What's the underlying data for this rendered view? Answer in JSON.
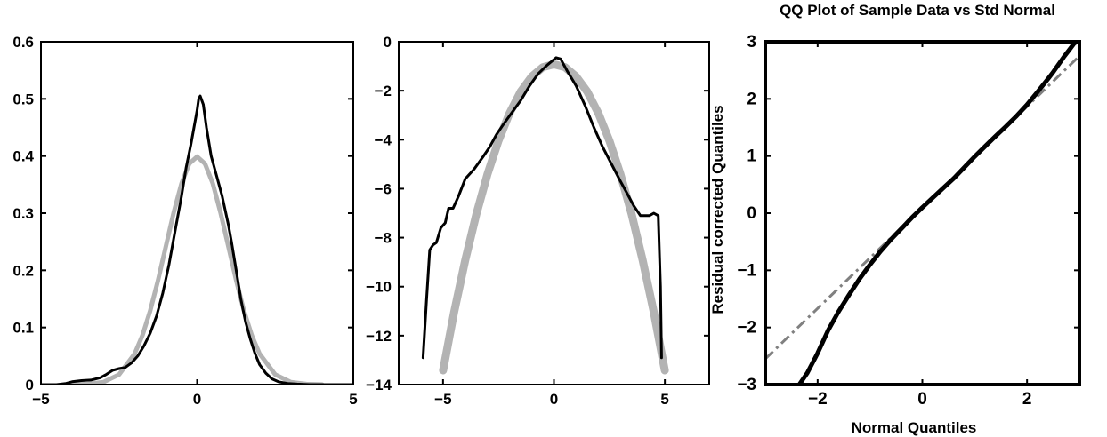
{
  "colors": {
    "axis": "#000000",
    "empirical": "#000000",
    "gaussian": "#b3b3b3",
    "reference": "#808080"
  },
  "chart_data": [
    {
      "type": "line",
      "title": "",
      "xlabel": "",
      "ylabel": "",
      "xlim": [
        -5,
        5
      ],
      "ylim": [
        0,
        0.6
      ],
      "xticks": [
        -5,
        0,
        5
      ],
      "xtick_labels": [
        "−5",
        "0",
        "5"
      ],
      "yticks": [
        0,
        0.1,
        0.2,
        0.3,
        0.4,
        0.5,
        0.6
      ],
      "ytick_labels": [
        "0",
        "0.1",
        "0.2",
        "0.3",
        "0.4",
        "0.5",
        "0.6"
      ],
      "grid": false,
      "series": [
        {
          "style": "thick-light-gray",
          "x": [
            -4.0,
            -3.5,
            -3.0,
            -2.5,
            -2.0,
            -1.75,
            -1.5,
            -1.25,
            -1.0,
            -0.75,
            -0.5,
            -0.25,
            0.0,
            0.25,
            0.5,
            0.75,
            1.0,
            1.25,
            1.5,
            1.75,
            2.0,
            2.5,
            3.0,
            3.5,
            4.0
          ],
          "y": [
            0.0001,
            0.0009,
            0.0044,
            0.0175,
            0.054,
            0.0863,
            0.1295,
            0.1826,
            0.242,
            0.3011,
            0.3521,
            0.3867,
            0.3989,
            0.3867,
            0.3521,
            0.3011,
            0.242,
            0.1826,
            0.1295,
            0.0863,
            0.054,
            0.0175,
            0.0044,
            0.0009,
            0.0001
          ]
        },
        {
          "style": "black",
          "x": [
            -5.0,
            -4.5,
            -4.2,
            -4.0,
            -3.7,
            -3.4,
            -3.1,
            -2.9,
            -2.7,
            -2.5,
            -2.3,
            -2.1,
            -1.9,
            -1.7,
            -1.5,
            -1.3,
            -1.1,
            -0.9,
            -0.7,
            -0.5,
            -0.35,
            -0.2,
            -0.1,
            0.0,
            0.05,
            0.1,
            0.2,
            0.3,
            0.45,
            0.6,
            0.8,
            1.0,
            1.1,
            1.25,
            1.4,
            1.55,
            1.7,
            1.85,
            2.0,
            2.2,
            2.4,
            2.6,
            2.9,
            3.2,
            3.6,
            4.0,
            5.0
          ],
          "y": [
            0.0,
            0.0,
            0.002,
            0.005,
            0.007,
            0.008,
            0.012,
            0.018,
            0.025,
            0.028,
            0.03,
            0.038,
            0.05,
            0.068,
            0.09,
            0.12,
            0.16,
            0.21,
            0.27,
            0.33,
            0.38,
            0.42,
            0.45,
            0.48,
            0.5,
            0.505,
            0.49,
            0.45,
            0.4,
            0.37,
            0.33,
            0.28,
            0.25,
            0.2,
            0.15,
            0.11,
            0.08,
            0.055,
            0.035,
            0.02,
            0.01,
            0.005,
            0.002,
            0.001,
            0.0,
            0.0,
            0.0
          ]
        }
      ]
    },
    {
      "type": "line",
      "title": "",
      "xlabel": "",
      "ylabel": "",
      "xlim": [
        -7,
        7
      ],
      "ylim": [
        -14,
        0
      ],
      "xticks": [
        -5,
        0,
        5
      ],
      "xtick_labels": [
        "−5",
        "0",
        "5"
      ],
      "yticks": [
        0,
        -2,
        -4,
        -6,
        -8,
        -10,
        -12,
        -14
      ],
      "ytick_labels": [
        "0",
        "−2",
        "−4",
        "−6",
        "−8",
        "−10",
        "−12",
        "−14"
      ],
      "grid": false,
      "series": [
        {
          "style": "thick-light-gray",
          "x": [
            -5.0,
            -4.5,
            -4.0,
            -3.5,
            -3.0,
            -2.5,
            -2.0,
            -1.5,
            -1.0,
            -0.5,
            0.0,
            0.5,
            1.0,
            1.5,
            2.0,
            2.5,
            3.0,
            3.5,
            4.0,
            4.5,
            5.0
          ],
          "y": [
            -13.42,
            -11.04,
            -8.92,
            -7.04,
            -5.42,
            -4.04,
            -2.92,
            -2.04,
            -1.42,
            -1.04,
            -0.92,
            -1.04,
            -1.42,
            -2.04,
            -2.92,
            -4.04,
            -5.42,
            -7.04,
            -8.92,
            -11.04,
            -13.42
          ]
        },
        {
          "style": "black",
          "x": [
            -5.9,
            -5.75,
            -5.6,
            -5.45,
            -5.3,
            -5.1,
            -4.9,
            -4.75,
            -4.55,
            -4.3,
            -4.0,
            -3.6,
            -3.2,
            -2.9,
            -2.6,
            -2.3,
            -1.9,
            -1.5,
            -1.1,
            -0.7,
            -0.3,
            0.1,
            0.3,
            0.6,
            1.0,
            1.4,
            1.8,
            2.2,
            2.6,
            3.0,
            3.3,
            3.6,
            3.9,
            4.1,
            4.3,
            4.5,
            4.7,
            4.8,
            4.85
          ],
          "y": [
            -12.9,
            -10.6,
            -8.5,
            -8.3,
            -8.2,
            -7.6,
            -7.4,
            -6.8,
            -6.8,
            -6.3,
            -5.6,
            -5.2,
            -4.7,
            -4.3,
            -3.8,
            -3.4,
            -2.9,
            -2.4,
            -1.8,
            -1.3,
            -0.95,
            -0.65,
            -0.7,
            -1.2,
            -1.8,
            -2.6,
            -3.5,
            -4.3,
            -5.0,
            -5.7,
            -6.2,
            -6.7,
            -7.1,
            -7.1,
            -7.1,
            -7.0,
            -7.1,
            -10.0,
            -12.9
          ]
        }
      ]
    },
    {
      "type": "scatter",
      "title": "QQ Plot of Sample Data vs Std Normal",
      "xlabel": "Normal Quantiles",
      "ylabel": "Residual corrected Quantiles",
      "xlim": [
        -3,
        3
      ],
      "ylim": [
        -3,
        3
      ],
      "xticks": [
        -2,
        0,
        2
      ],
      "xtick_labels": [
        "−2",
        "0",
        "2"
      ],
      "yticks": [
        3,
        2,
        1,
        0,
        -1,
        -2,
        -3
      ],
      "ytick_labels": [
        "3",
        "2",
        "1",
        "0",
        "−1",
        "−2",
        "−3"
      ],
      "grid": false,
      "reference_line": {
        "x": [
          -3.0,
          3.0
        ],
        "y": [
          -2.55,
          2.75
        ]
      },
      "series": [
        {
          "style": "black",
          "x": [
            -2.35,
            -2.2,
            -2.0,
            -1.8,
            -1.6,
            -1.4,
            -1.2,
            -1.0,
            -0.8,
            -0.6,
            -0.4,
            -0.2,
            0.0,
            0.2,
            0.4,
            0.6,
            0.8,
            1.0,
            1.2,
            1.4,
            1.6,
            1.8,
            2.0,
            2.2,
            2.4,
            2.5,
            2.6,
            2.7,
            2.8,
            2.9,
            2.95
          ],
          "y": [
            -3.0,
            -2.8,
            -2.45,
            -2.05,
            -1.72,
            -1.43,
            -1.15,
            -0.9,
            -0.67,
            -0.46,
            -0.27,
            -0.08,
            0.1,
            0.27,
            0.44,
            0.61,
            0.8,
            0.99,
            1.17,
            1.35,
            1.52,
            1.7,
            1.9,
            2.12,
            2.35,
            2.47,
            2.6,
            2.73,
            2.85,
            2.97,
            3.0
          ]
        }
      ]
    }
  ]
}
